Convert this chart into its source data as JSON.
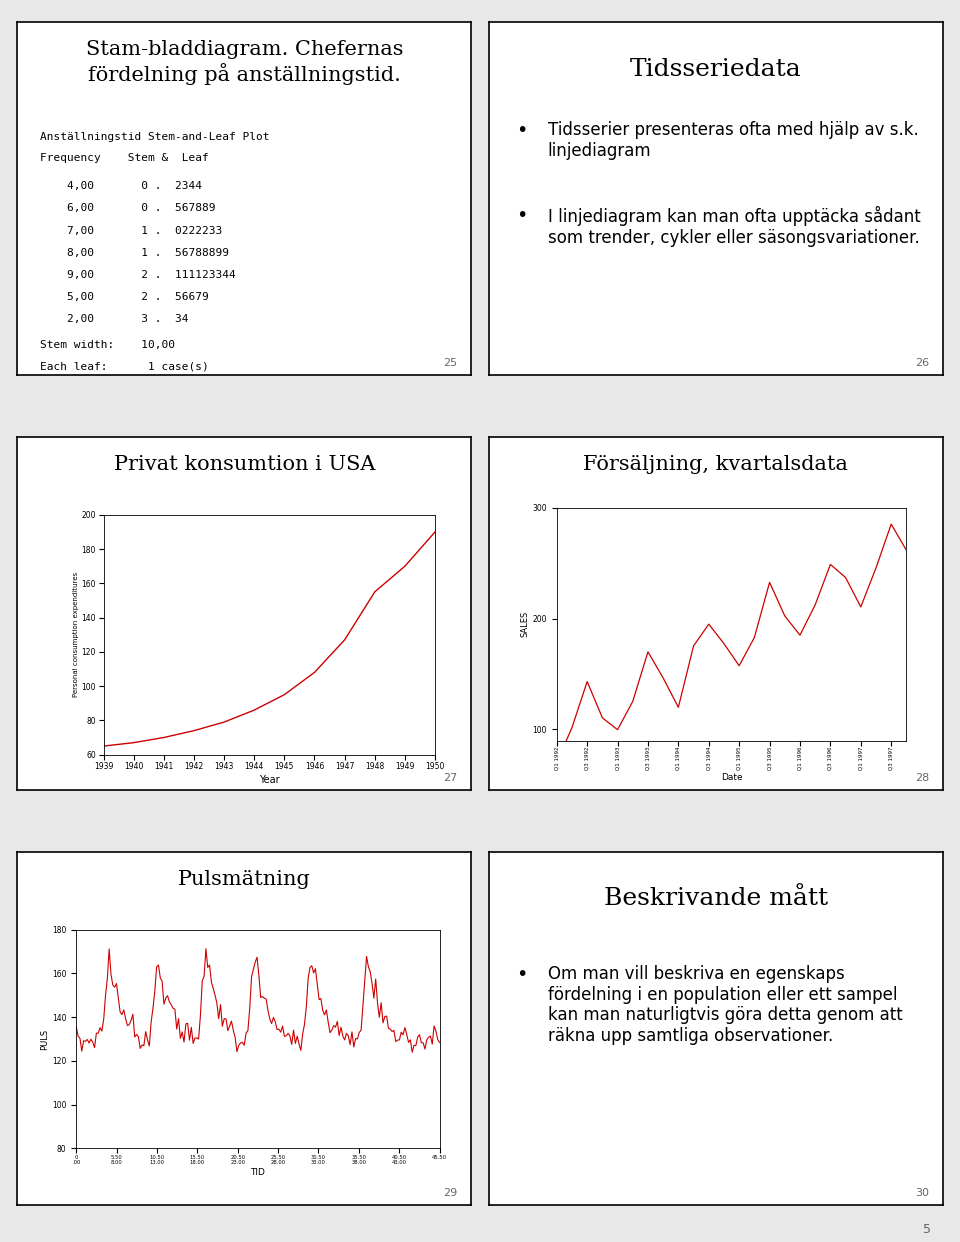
{
  "slide_bg": "#e8e8e8",
  "panel_bg": "#ffffff",
  "border_color": "#000000",
  "page_num_color": "#666666",
  "panel1": {
    "title": "Stam-bladdiagram. Chefernas\nfördelning på anställningstid.",
    "title_fontsize": 15,
    "subtitle": "Anställningstid Stem-and-Leaf Plot",
    "header": "Frequency    Stem &  Leaf",
    "rows": [
      "    4,00       0 .  2344",
      "    6,00       0 .  567889",
      "    7,00       1 .  0222233",
      "    8,00       1 .  56788899",
      "    9,00       2 .  111123344",
      "    5,00       2 .  56679",
      "    2,00       3 .  34"
    ],
    "footer_line1": "Stem width:    10,00",
    "footer_line2": "Each leaf:      1 case(s)",
    "page": "25"
  },
  "panel2": {
    "title": "Tidsseriedata",
    "title_fontsize": 18,
    "bullet1": "Tidsserier presenteras ofta med hjälp av s.k.\nlinjediagram",
    "bullet2": "I linjediagram kan man ofta upptäcka sådant\nsom trender, cykler eller säsongsvariationer.",
    "bullet_fontsize": 12,
    "page": "26"
  },
  "panel3": {
    "title": "Privat konsumtion i USA",
    "title_fontsize": 15,
    "xlabel": "Year",
    "ylabel": "Personal consumption expenditures",
    "ylim": [
      60,
      200
    ],
    "yticks": [
      60,
      80,
      100,
      120,
      140,
      160,
      180,
      200
    ],
    "line_color": "#cc0000",
    "x_values": [
      1939,
      1940,
      1941,
      1942,
      1943,
      1944,
      1945,
      1946,
      1947,
      1948,
      1949,
      1950
    ],
    "y_values": [
      65,
      67,
      70,
      74,
      79,
      86,
      95,
      108,
      127,
      155,
      170,
      190
    ],
    "page": "27"
  },
  "panel4": {
    "title": "Försäljning, kvartalsdata",
    "title_fontsize": 15,
    "xlabel": "Date",
    "ylabel": "SALES",
    "ylim": [
      90,
      300
    ],
    "yticks": [
      100,
      200,
      300
    ],
    "line_color": "#cc0000",
    "page": "28"
  },
  "panel5": {
    "title": "Pulsmätning",
    "title_fontsize": 15,
    "xlabel": "TID",
    "ylabel": "PULS",
    "ylim": [
      80,
      180
    ],
    "yticks": [
      80,
      100,
      120,
      140,
      160,
      180
    ],
    "line_color": "#cc0000",
    "page": "29"
  },
  "panel6": {
    "title": "Beskrivande mått",
    "title_fontsize": 18,
    "bullet1": "Om man vill beskriva en egenskaps\nfördelning i en population eller ett sampel\nkan man naturligtvis göra detta genom att\nräkna upp samtliga observationer.",
    "bullet_fontsize": 12,
    "page": "30"
  },
  "bottom_page": "5"
}
